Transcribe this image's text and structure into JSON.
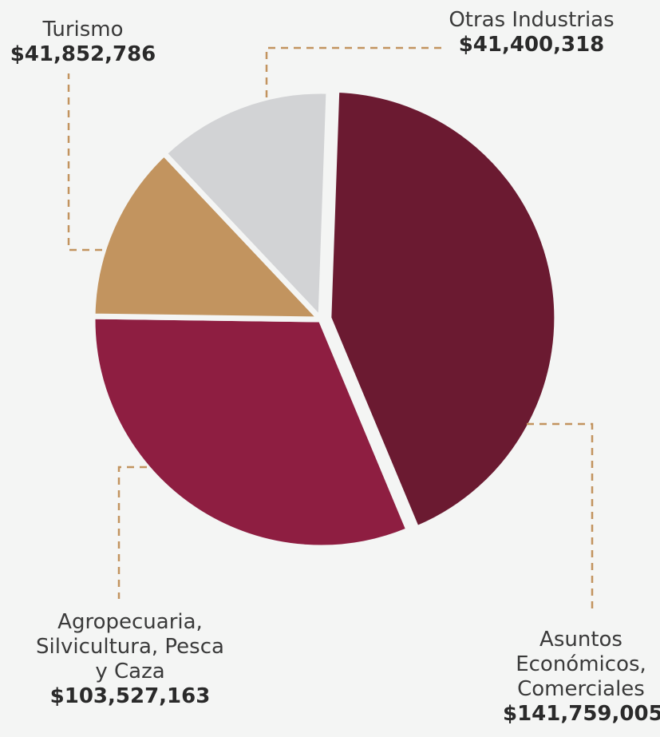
{
  "chart_data": {
    "type": "pie",
    "title": "",
    "slices": [
      {
        "label": "Asuntos Económicos, Comerciales",
        "label_lines": [
          "Asuntos",
          "Económicos,",
          "Comerciales"
        ],
        "value": 141759005,
        "value_label": "$141,759,005",
        "color": "#6b1a31"
      },
      {
        "label": "Agropecuaria, Silvicultura, Pesca y Caza",
        "label_lines": [
          "Agropecuaria,",
          "Silvicultura, Pesca",
          "y Caza"
        ],
        "value": 103527163,
        "value_label": "$103,527,163",
        "color": "#8e1e41"
      },
      {
        "label": "Turismo",
        "label_lines": [
          "Turismo"
        ],
        "value": 41852786,
        "value_label": "$41,852,786",
        "color": "#c2945f"
      },
      {
        "label": "Otras Industrias",
        "label_lines": [
          "Otras Industrias"
        ],
        "value": 41400318,
        "value_label": "$41,400,318",
        "color": "#d2d3d5"
      }
    ],
    "leader_line_color": "#c2945f",
    "legend": "none"
  }
}
